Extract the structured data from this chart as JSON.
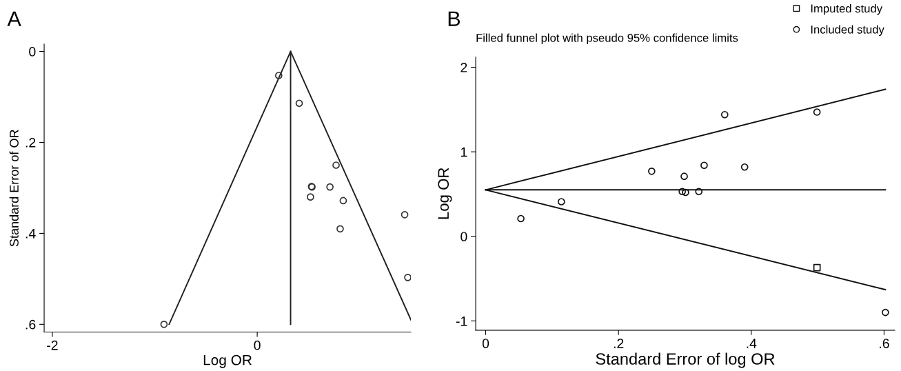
{
  "chart_data": [
    {
      "type": "scatter",
      "xlabel": "Log OR",
      "ylabel": "Standard Error of OR",
      "annotations": [
        "A"
      ],
      "xlim": [
        -2.08,
        1.5
      ],
      "ylim": [
        0.617,
        -0.016
      ],
      "xticks": [
        -2,
        0
      ],
      "yticks": [
        0,
        {
          "value": 0.2,
          "label": ".2"
        },
        {
          "value": 0.4,
          "label": ".4"
        },
        {
          "value": 0.6,
          "label": ".6"
        }
      ],
      "grid": false,
      "legend": false,
      "series": [
        {
          "marker": "circle",
          "color": "#333333",
          "x": [
            0.21,
            0.41,
            0.77,
            0.53,
            0.535,
            0.71,
            0.52,
            0.84,
            1.44,
            0.81,
            1.47,
            -0.91
          ],
          "values": [
            0.053,
            0.114,
            0.25,
            0.297,
            0.298,
            0.298,
            0.32,
            0.328,
            0.359,
            0.39,
            0.497,
            0.6
          ]
        },
        {
          "type": "line",
          "color": "#222222",
          "marker": "none",
          "x": [
            -0.86,
            0.326,
            1.5
          ],
          "values": [
            0.6,
            0,
            0.59
          ]
        },
        {
          "type": "line",
          "color": "#222222",
          "marker": "none",
          "x": [
            0.326,
            0.326
          ],
          "values": [
            0,
            0.6
          ]
        }
      ]
    },
    {
      "type": "scatter",
      "title": "Filled funnel plot with pseudo 95% confidence limits",
      "xlabel": "Standard Error of log OR",
      "ylabel": "Log OR",
      "annotations": [
        "B"
      ],
      "xlim": [
        -0.015,
        0.616
      ],
      "ylim": [
        -1.11,
        2.12
      ],
      "xticks": [
        0,
        {
          "value": 0.2,
          "label": ".2"
        },
        {
          "value": 0.4,
          "label": ".4"
        },
        {
          "value": 0.6,
          "label": ".6"
        }
      ],
      "yticks": [
        -1,
        0,
        1,
        2
      ],
      "grid": false,
      "legend": "top right",
      "series": [
        {
          "name": "Imputed study",
          "color": "#111111",
          "marker": "square",
          "x": [
            0.499
          ],
          "values": [
            -0.37
          ]
        },
        {
          "name": "Included study",
          "marker": "circle",
          "color": "#111111",
          "x": [
            0.053,
            0.114,
            0.25,
            0.299,
            0.296,
            0.301,
            0.321,
            0.329,
            0.36,
            0.39,
            0.499,
            0.602
          ],
          "values": [
            0.21,
            0.41,
            0.77,
            0.71,
            0.53,
            0.52,
            0.53,
            0.84,
            1.44,
            0.82,
            1.47,
            -0.9
          ]
        },
        {
          "type": "line",
          "color": "#111111",
          "marker": "none",
          "x": [
            0,
            0.602
          ],
          "values": [
            0.55,
            1.74
          ]
        },
        {
          "type": "line",
          "color": "#111111",
          "marker": "none",
          "x": [
            0,
            0.602
          ],
          "values": [
            0.55,
            -0.63
          ]
        },
        {
          "type": "line",
          "color": "#111111",
          "marker": "none",
          "x": [
            0,
            0.602
          ],
          "values": [
            0.55,
            0.55
          ]
        }
      ]
    }
  ]
}
